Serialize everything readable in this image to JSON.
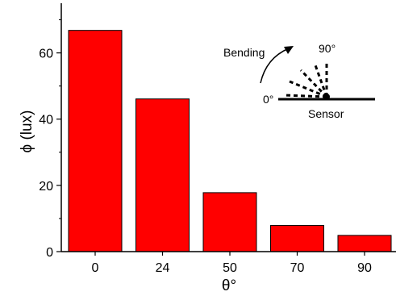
{
  "chart_data": {
    "type": "bar",
    "categories": [
      "0",
      "24",
      "50",
      "70",
      "90"
    ],
    "values": [
      66.8,
      46.1,
      17.8,
      7.9,
      4.9
    ],
    "xlabel": "θ°",
    "ylabel": "ϕ (lux)",
    "ylim": [
      0,
      75
    ],
    "yticks": [
      0,
      20,
      40,
      60
    ],
    "grid": false,
    "bar_color": "#ff0000",
    "inset": {
      "bending_label": "Bending",
      "angle_top_label": "90°",
      "angle_left_label": "0°",
      "sensor_label": "Sensor"
    }
  }
}
